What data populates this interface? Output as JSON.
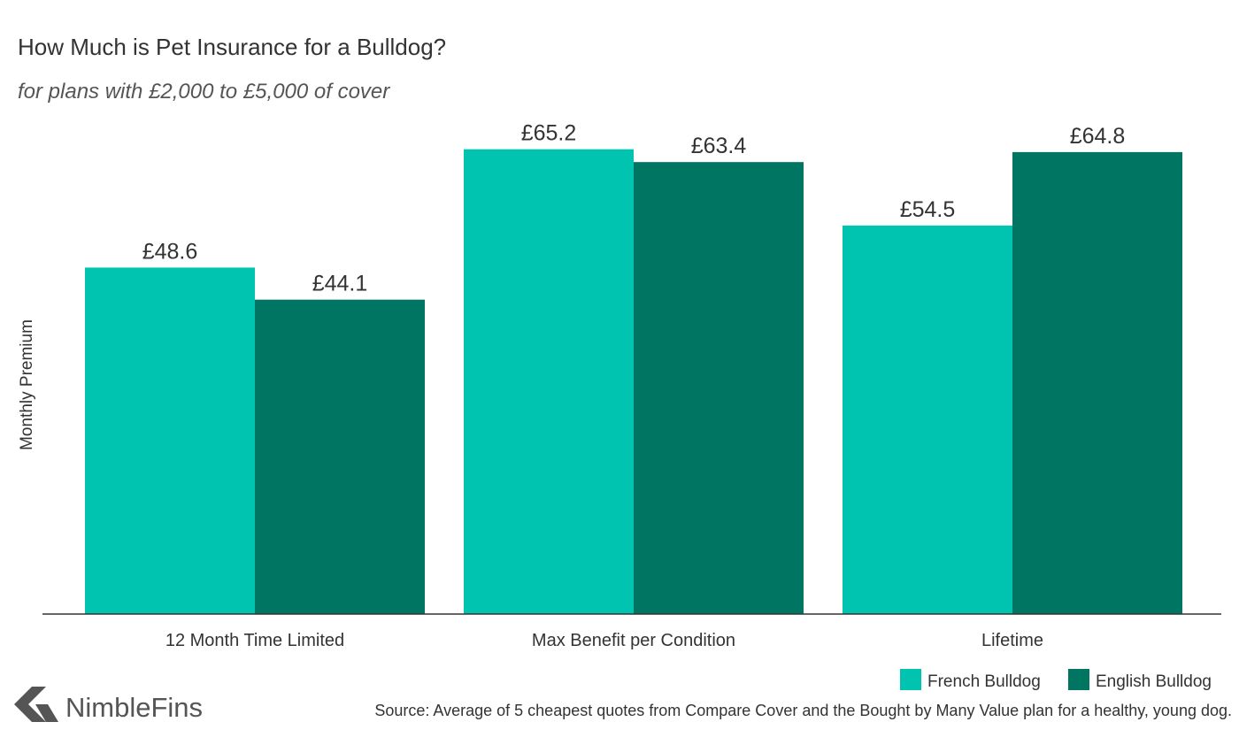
{
  "chart_data": {
    "type": "bar",
    "title": "How Much is Pet Insurance for a Bulldog?",
    "subtitle": "for plans with £2,000 to £5,000 of cover",
    "ylabel": "Monthly Premium",
    "xlabel": "",
    "categories": [
      "12 Month Time Limited",
      "Max Benefit per Condition",
      "Lifetime"
    ],
    "series": [
      {
        "name": "French Bulldog",
        "values": [
          48.6,
          65.2,
          54.5
        ],
        "labels": [
          "£48.6",
          "£65.2",
          "£54.5"
        ],
        "color": "#00c4b0"
      },
      {
        "name": "English Bulldog",
        "values": [
          44.1,
          63.4,
          64.8
        ],
        "labels": [
          "£44.1",
          "£63.4",
          "£64.8"
        ],
        "color": "#007662"
      }
    ],
    "ylim": [
      0,
      70
    ],
    "grid": false,
    "legend_position": "bottom-right"
  },
  "branding": {
    "logo_text": "NimbleFins",
    "logo_color": "#555555"
  },
  "source": "Source: Average of 5 cheapest quotes from Compare Cover and the Bought by Many Value plan for a healthy, young dog."
}
